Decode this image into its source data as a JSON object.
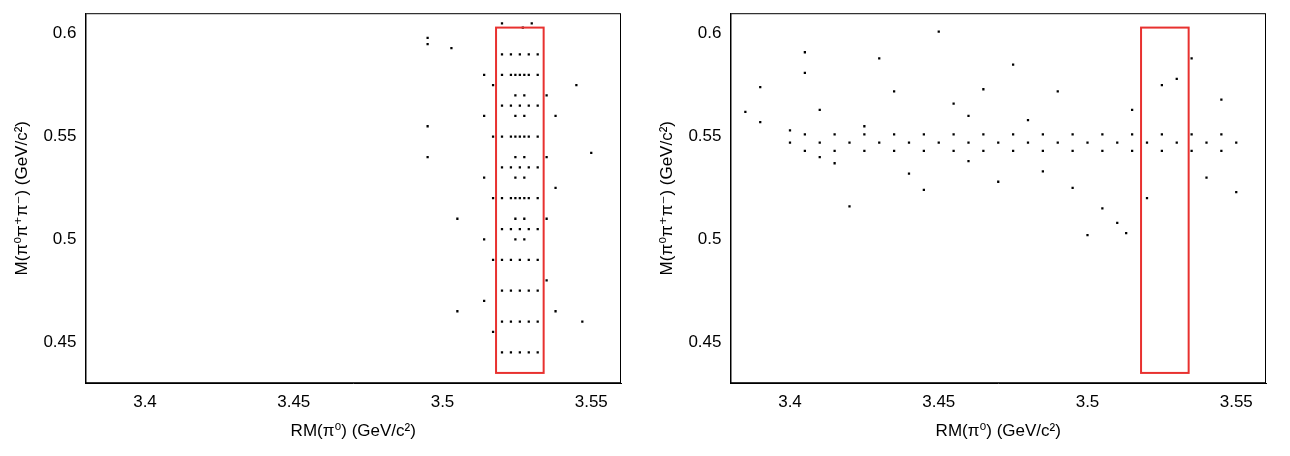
{
  "chart_data": [
    {
      "type": "scatter",
      "x_label": "RM(π⁰) (GeV/c²)",
      "y_label": "M(π⁰π⁺π⁻) (GeV/c²)",
      "xlim": [
        3.38,
        3.56
      ],
      "xticks": [
        3.4,
        3.45,
        3.5,
        3.55
      ],
      "ylim": [
        0.43,
        0.61
      ],
      "yticks": [
        0.45,
        0.5,
        0.55,
        0.6
      ],
      "color": "#000000",
      "marker": "square",
      "x": [
        3.52,
        3.52,
        3.52,
        3.52,
        3.52,
        3.52,
        3.52,
        3.52,
        3.52,
        3.52,
        3.52,
        3.523,
        3.523,
        3.523,
        3.523,
        3.523,
        3.523,
        3.523,
        3.523,
        3.523,
        3.523,
        3.523,
        3.526,
        3.526,
        3.526,
        3.526,
        3.526,
        3.526,
        3.526,
        3.526,
        3.526,
        3.526,
        3.526,
        3.529,
        3.529,
        3.529,
        3.529,
        3.529,
        3.529,
        3.529,
        3.529,
        3.529,
        3.529,
        3.529,
        3.532,
        3.532,
        3.532,
        3.532,
        3.532,
        3.532,
        3.532,
        3.532,
        3.532,
        3.532,
        3.532,
        3.5245,
        3.5245,
        3.5245,
        3.5245,
        3.5245,
        3.5245,
        3.5245,
        3.5245,
        3.5245,
        3.5275,
        3.5275,
        3.5275,
        3.5275,
        3.5275,
        3.5275,
        3.5275,
        3.5275,
        3.5275,
        3.514,
        3.514,
        3.514,
        3.514,
        3.514,
        3.517,
        3.517,
        3.517,
        3.517,
        3.517,
        3.535,
        3.535,
        3.535,
        3.535,
        3.538,
        3.538,
        3.538,
        3.495,
        3.495,
        3.495,
        3.495,
        3.503,
        3.505,
        3.505,
        3.547,
        3.55,
        3.545,
        3.52,
        3.53,
        3.527
      ],
      "values": [
        0.445,
        0.46,
        0.475,
        0.49,
        0.505,
        0.52,
        0.535,
        0.55,
        0.565,
        0.58,
        0.59,
        0.445,
        0.46,
        0.475,
        0.49,
        0.505,
        0.52,
        0.535,
        0.55,
        0.565,
        0.58,
        0.59,
        0.445,
        0.46,
        0.475,
        0.49,
        0.505,
        0.52,
        0.535,
        0.55,
        0.565,
        0.58,
        0.59,
        0.445,
        0.46,
        0.475,
        0.49,
        0.505,
        0.52,
        0.535,
        0.55,
        0.565,
        0.58,
        0.59,
        0.445,
        0.46,
        0.475,
        0.49,
        0.505,
        0.52,
        0.535,
        0.55,
        0.565,
        0.58,
        0.59,
        0.5,
        0.51,
        0.52,
        0.53,
        0.54,
        0.55,
        0.56,
        0.57,
        0.58,
        0.5,
        0.51,
        0.52,
        0.53,
        0.54,
        0.55,
        0.56,
        0.57,
        0.58,
        0.47,
        0.5,
        0.53,
        0.56,
        0.58,
        0.455,
        0.49,
        0.52,
        0.55,
        0.575,
        0.48,
        0.51,
        0.54,
        0.57,
        0.465,
        0.525,
        0.56,
        0.598,
        0.595,
        0.555,
        0.54,
        0.593,
        0.51,
        0.465,
        0.46,
        0.542,
        0.575,
        0.605,
        0.605,
        0.603
      ],
      "selection_box": {
        "x": [
          3.518,
          3.534
        ],
        "y": [
          0.435,
          0.603
        ],
        "color": "#e8312f"
      }
    },
    {
      "type": "scatter",
      "x_label": "RM(π⁰) (GeV/c²)",
      "y_label": "M(π⁰π⁺π⁻) (GeV/c²)",
      "xlim": [
        3.38,
        3.56
      ],
      "xticks": [
        3.4,
        3.45,
        3.5,
        3.55
      ],
      "ylim": [
        0.43,
        0.61
      ],
      "yticks": [
        0.45,
        0.5,
        0.55,
        0.6
      ],
      "color": "#000000",
      "marker": "square",
      "x": [
        3.4,
        3.41,
        3.42,
        3.43,
        3.44,
        3.45,
        3.46,
        3.47,
        3.48,
        3.49,
        3.5,
        3.51,
        3.52,
        3.53,
        3.54,
        3.55,
        3.405,
        3.415,
        3.425,
        3.435,
        3.445,
        3.455,
        3.465,
        3.475,
        3.485,
        3.495,
        3.505,
        3.515,
        3.525,
        3.535,
        3.545,
        3.405,
        3.415,
        3.425,
        3.435,
        3.445,
        3.455,
        3.465,
        3.475,
        3.485,
        3.495,
        3.505,
        3.515,
        3.525,
        3.535,
        3.545,
        3.39,
        3.39,
        3.4,
        3.405,
        3.405,
        3.41,
        3.415,
        3.42,
        3.425,
        3.43,
        3.435,
        3.44,
        3.445,
        3.45,
        3.455,
        3.46,
        3.465,
        3.47,
        3.475,
        3.48,
        3.485,
        3.49,
        3.495,
        3.5,
        3.505,
        3.51,
        3.513,
        3.52,
        3.525,
        3.53,
        3.535,
        3.54,
        3.545,
        3.55,
        3.515,
        3.46,
        3.41,
        3.385
      ],
      "values": [
        0.547,
        0.547,
        0.547,
        0.547,
        0.547,
        0.547,
        0.547,
        0.547,
        0.547,
        0.547,
        0.547,
        0.547,
        0.547,
        0.547,
        0.547,
        0.547,
        0.543,
        0.543,
        0.543,
        0.543,
        0.543,
        0.543,
        0.543,
        0.543,
        0.543,
        0.543,
        0.543,
        0.543,
        0.543,
        0.543,
        0.543,
        0.551,
        0.551,
        0.551,
        0.551,
        0.551,
        0.551,
        0.551,
        0.551,
        0.551,
        0.551,
        0.551,
        0.551,
        0.551,
        0.551,
        0.551,
        0.574,
        0.557,
        0.553,
        0.581,
        0.591,
        0.563,
        0.537,
        0.516,
        0.555,
        0.588,
        0.572,
        0.532,
        0.524,
        0.601,
        0.566,
        0.538,
        0.573,
        0.528,
        0.585,
        0.558,
        0.533,
        0.572,
        0.525,
        0.502,
        0.515,
        0.508,
        0.503,
        0.52,
        0.575,
        0.578,
        0.588,
        0.53,
        0.568,
        0.523,
        0.563,
        0.56,
        0.54,
        0.562
      ],
      "selection_box": {
        "x": [
          3.518,
          3.534
        ],
        "y": [
          0.435,
          0.603
        ],
        "color": "#e8312f"
      }
    }
  ]
}
